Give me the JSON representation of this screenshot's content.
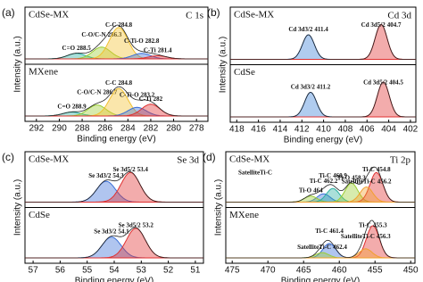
{
  "chart_data": [
    {
      "type": "line",
      "panel": "(a)",
      "element": "C 1s",
      "xlabel": "Binding energy (eV)",
      "ylabel": "Intensity (a.u.)",
      "xlim": [
        293,
        277
      ],
      "xticks": [
        292,
        290,
        288,
        286,
        284,
        282,
        280,
        278
      ],
      "ylim": [
        0,
        100
      ],
      "subplots": [
        {
          "sample": "CdSe-MX",
          "peaks": [
            {
              "name": "C=O",
              "value": 288.5,
              "intensity": 14,
              "color": "#2ab0a0"
            },
            {
              "name": "C-O/C-N",
              "value": 286.3,
              "intensity": 30,
              "color": "#9acd32"
            },
            {
              "name": "C-C",
              "value": 284.8,
              "intensity": 80,
              "color": "#f2c12e"
            },
            {
              "name": "C-Ti-O",
              "value": 282.8,
              "intensity": 14,
              "color": "#3a6fd8"
            },
            {
              "name": "C-Ti",
              "value": 281.4,
              "intensity": 8,
              "color": "#e03030"
            }
          ]
        },
        {
          "sample": "MXene",
          "peaks": [
            {
              "name": "C=O",
              "value": 288.9,
              "intensity": 10,
              "color": "#2ab0a0"
            },
            {
              "name": "C-O/C-N",
              "value": 286.7,
              "intensity": 28,
              "color": "#9acd32"
            },
            {
              "name": "C-C",
              "value": 284.8,
              "intensity": 70,
              "color": "#f2c12e"
            },
            {
              "name": "C-Ti-O",
              "value": 283.2,
              "intensity": 22,
              "color": "#3a6fd8"
            },
            {
              "name": "C-Ti",
              "value": 282.0,
              "intensity": 30,
              "color": "#e03030"
            }
          ]
        }
      ]
    },
    {
      "type": "line",
      "panel": "(b)",
      "element": "Cd 3d",
      "xlabel": "Binding energy (eV)",
      "ylabel": "Intensity (a.u.)",
      "xlim": [
        418.6,
        401.5
      ],
      "xticks": [
        418,
        416,
        414,
        412,
        410,
        408,
        406,
        404,
        402
      ],
      "ylim": [
        0,
        100
      ],
      "subplots": [
        {
          "sample": "CdSe-MX",
          "peaks": [
            {
              "name": "Cd 3d3/2",
              "value": 411.4,
              "intensity": 62,
              "color": "#3a7fd8"
            },
            {
              "name": "Cd 3d5/2",
              "value": 404.7,
              "intensity": 88,
              "color": "#e03030"
            }
          ]
        },
        {
          "sample": "CdSe",
          "peaks": [
            {
              "name": "Cd 3d3/2",
              "value": 411.2,
              "intensity": 62,
              "color": "#3a7fd8"
            },
            {
              "name": "Cd 3d5/2",
              "value": 404.5,
              "intensity": 88,
              "color": "#e03030"
            }
          ]
        }
      ]
    },
    {
      "type": "line",
      "panel": "(c)",
      "element": "Se 3d",
      "xlabel": "Binding energy (eV)",
      "ylabel": "Intensity (a.u.)",
      "xlim": [
        57.3,
        50.7
      ],
      "xticks": [
        57,
        56,
        55,
        54,
        53,
        52,
        51
      ],
      "ylim": [
        0,
        100
      ],
      "subplots": [
        {
          "sample": "CdSe-MX",
          "peaks": [
            {
              "name": "Se 3d3/2",
              "value": 54.3,
              "intensity": 55,
              "color": "#3a6fd8"
            },
            {
              "name": "Se 3d5/2",
              "value": 53.4,
              "intensity": 78,
              "color": "#e03030"
            }
          ]
        },
        {
          "sample": "CdSe",
          "peaks": [
            {
              "name": "Se 3d3/2",
              "value": 54.1,
              "intensity": 55,
              "color": "#3a6fd8"
            },
            {
              "name": "Se 3d5/2",
              "value": 53.2,
              "intensity": 78,
              "color": "#e03030"
            }
          ]
        }
      ]
    },
    {
      "type": "line",
      "panel": "(d)",
      "element": "Ti 2p",
      "xlabel": "Binding energy (eV)",
      "ylabel": "Intensity (a.u.)",
      "xlim": [
        475.9,
        449.4
      ],
      "xticks": [
        475,
        470,
        465,
        460,
        455,
        450
      ],
      "ylim": [
        0,
        100
      ],
      "subplots": [
        {
          "sample": "CdSe-MX",
          "peaks": [
            {
              "name": "SatelliteTi-C"
            },
            {
              "name": "Ti-C",
              "value": 462.2,
              "intensity": 22,
              "color": "#3a6fd8"
            },
            {
              "name": "Ti-O",
              "value": 464.0,
              "intensity": 16,
              "color": "#9acd32"
            },
            {
              "name": "Ti-C",
              "value": 460.9,
              "intensity": 36,
              "color": "#2ab0a0"
            },
            {
              "name": "Ti-O",
              "value": 458.3,
              "intensity": 50,
              "color": "#9acd32"
            },
            {
              "name": "Ti-C",
              "value": 454.8,
              "intensity": 78,
              "color": "#e03030"
            },
            {
              "name": "SatelliteTi-C",
              "value": 456.2,
              "intensity": 40,
              "color": "#f2a02e"
            }
          ]
        },
        {
          "sample": "MXene",
          "peaks": [
            {
              "name": "Ti-C",
              "value": 455.3,
              "intensity": 85,
              "color": "#e03030"
            },
            {
              "name": "Ti-C",
              "value": 461.4,
              "intensity": 38,
              "color": "#3a6fd8"
            },
            {
              "name": "SatelliteTi-C",
              "value": 462.4,
              "intensity": 14,
              "color": "#9acd32"
            },
            {
              "name": "SatelliteTi-C",
              "value": 456.3,
              "intensity": 24,
              "color": "#f2a02e"
            }
          ]
        }
      ]
    }
  ]
}
